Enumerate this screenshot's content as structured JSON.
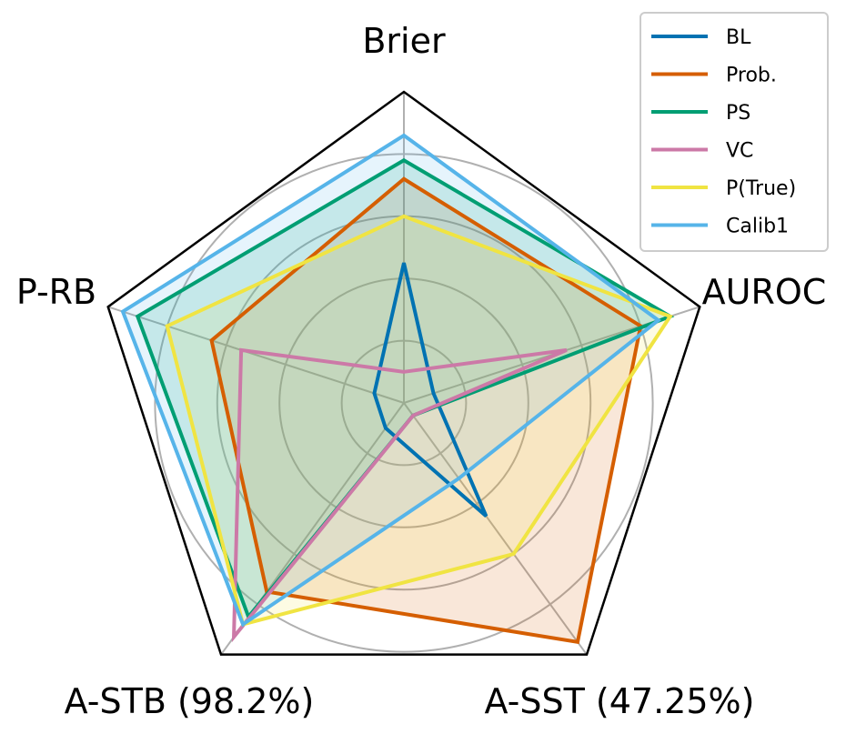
{
  "chart_data": {
    "type": "radar",
    "axes": [
      "Brier",
      "AUROC",
      "A-SST (47.25%)",
      "A-STB (98.2%)",
      "P-RB"
    ],
    "range": [
      0,
      1
    ],
    "grid_rings": [
      0.2,
      0.4,
      0.6,
      0.8
    ],
    "grid": true,
    "legend_position": "top-right",
    "series": [
      {
        "name": "BL",
        "color": "#0072B2",
        "values": [
          0.45,
          0.1,
          0.45,
          0.1,
          0.1
        ],
        "fill": false
      },
      {
        "name": "Prob.",
        "color": "#D55E00",
        "values": [
          0.72,
          0.8,
          0.95,
          0.75,
          0.65
        ],
        "fill": true
      },
      {
        "name": "PS",
        "color": "#009E73",
        "values": [
          0.78,
          0.9,
          0.05,
          0.85,
          0.9
        ],
        "fill": true
      },
      {
        "name": "VC",
        "color": "#CC79A7",
        "values": [
          0.1,
          0.55,
          0.05,
          0.93,
          0.55
        ],
        "fill": false
      },
      {
        "name": "P(True)",
        "color": "#F0E442",
        "values": [
          0.6,
          0.9,
          0.6,
          0.88,
          0.8
        ],
        "fill": true
      },
      {
        "name": "Calib1",
        "color": "#56B4E9",
        "values": [
          0.86,
          0.86,
          0.3,
          0.88,
          0.95
        ],
        "fill": true
      }
    ]
  }
}
